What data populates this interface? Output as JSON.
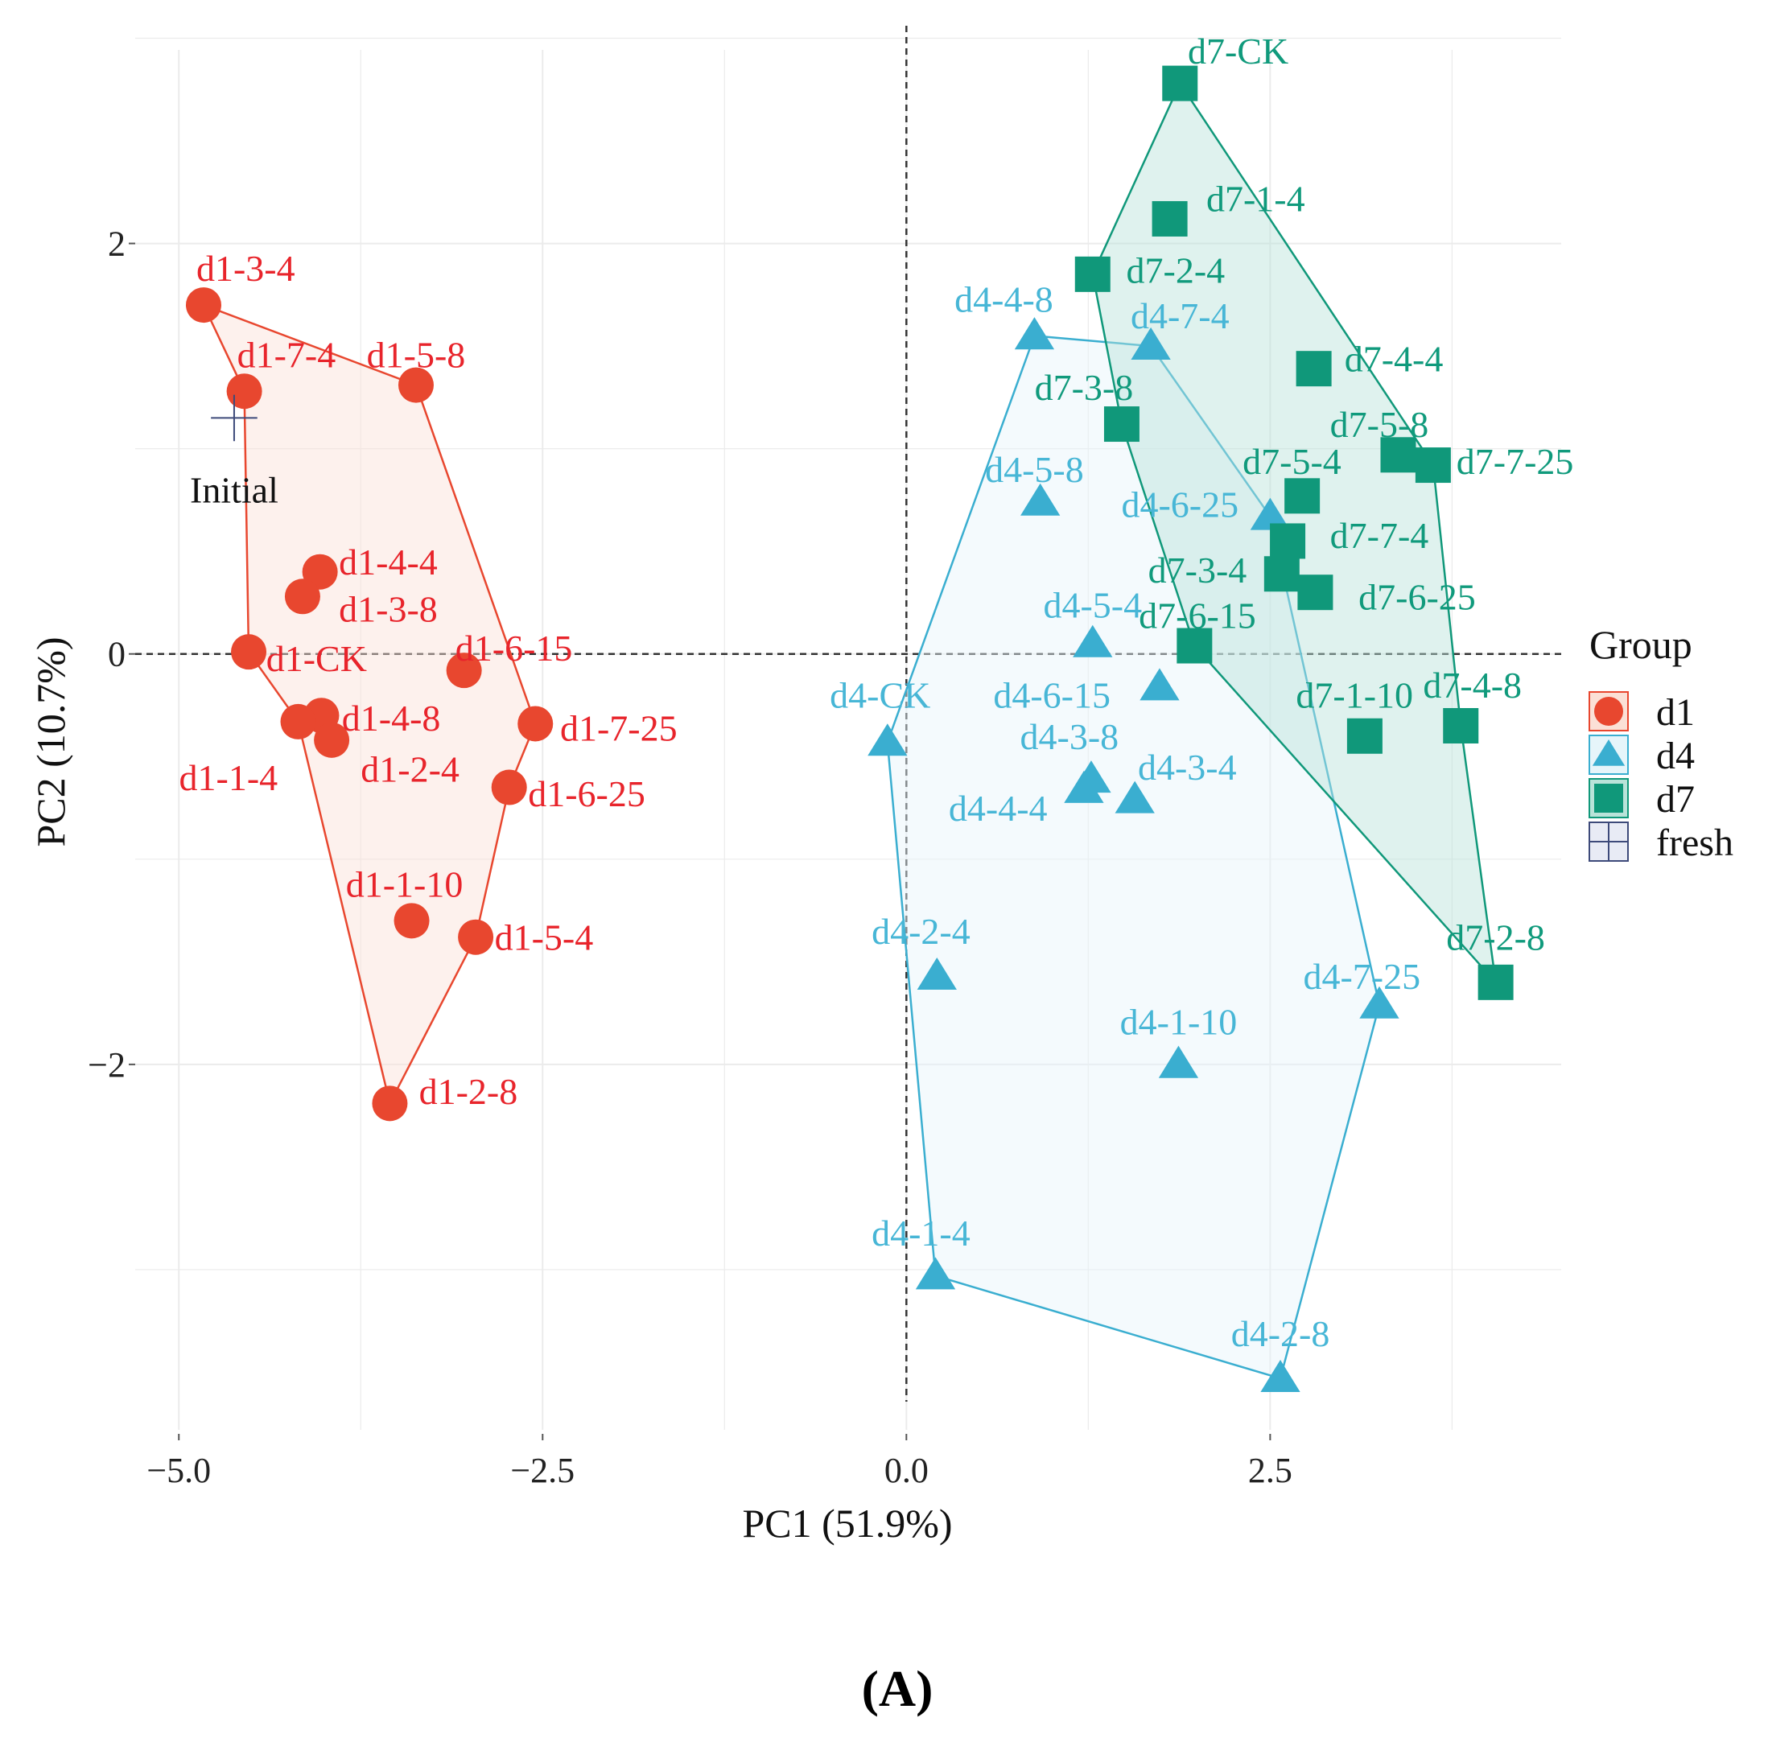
{
  "chart_data": {
    "type": "scatter",
    "xlabel": "PC1 (51.9%)",
    "ylabel": "PC2 (10.7%)",
    "xlim": [
      -5.3,
      4.5
    ],
    "ylim": [
      -3.8,
      3.1
    ],
    "xticks": [
      {
        "value": -5.0,
        "label": "−5.0"
      },
      {
        "value": -2.5,
        "label": "−2.5"
      },
      {
        "value": 0.0,
        "label": "0.0"
      },
      {
        "value": 2.5,
        "label": "2.5"
      }
    ],
    "yticks": [
      {
        "value": 2,
        "label": "2"
      },
      {
        "value": 0,
        "label": "0"
      },
      {
        "value": -2,
        "label": "−2"
      }
    ],
    "grid": true,
    "reference_lines": {
      "x": 0,
      "y": 0
    },
    "legend": {
      "title": "Group",
      "position": "right"
    },
    "caption": "(A)",
    "series": [
      {
        "name": "d1",
        "shape": "circle",
        "color": "#e8472f",
        "fill": "#fbe0d6",
        "label_color": "#e8242b",
        "hull": [
          "d1-3-4",
          "d1-5-8",
          "d1-7-25",
          "d1-6-25",
          "d1-5-4",
          "d1-2-8",
          "d1-1-4",
          "d1-CK",
          "d1-7-4"
        ],
        "points": [
          {
            "label": "d1-3-4",
            "x": -4.83,
            "y": 1.7,
            "lx": -4.88,
            "ly": 1.88,
            "anchor": "start"
          },
          {
            "label": "d1-7-4",
            "x": -4.55,
            "y": 1.28,
            "lx": -4.6,
            "ly": 1.46,
            "anchor": "start"
          },
          {
            "label": "d1-5-8",
            "x": -3.37,
            "y": 1.31,
            "lx": -3.37,
            "ly": 1.46,
            "anchor": "middle"
          },
          {
            "label": "d1-4-4",
            "x": -4.03,
            "y": 0.4,
            "lx": -3.9,
            "ly": 0.45,
            "anchor": "start"
          },
          {
            "label": "d1-3-8",
            "x": -4.15,
            "y": 0.28,
            "lx": -3.9,
            "ly": 0.22,
            "anchor": "start"
          },
          {
            "label": "d1-CK",
            "x": -4.52,
            "y": 0.01,
            "lx": -4.4,
            "ly": -0.02,
            "anchor": "start"
          },
          {
            "label": "d1-6-15",
            "x": -3.04,
            "y": -0.08,
            "lx": -3.1,
            "ly": 0.03,
            "anchor": "start"
          },
          {
            "label": "d1-7-25",
            "x": -2.55,
            "y": -0.34,
            "lx": -2.38,
            "ly": -0.36,
            "anchor": "start"
          },
          {
            "label": "d1-4-8",
            "x": -4.02,
            "y": -0.3,
            "lx": -3.88,
            "ly": -0.31,
            "anchor": "start"
          },
          {
            "label": "d1-1-4",
            "x": -4.18,
            "y": -0.33,
            "lx": -4.32,
            "ly": -0.6,
            "anchor": "end"
          },
          {
            "label": "d1-2-4",
            "x": -3.95,
            "y": -0.42,
            "lx": -3.75,
            "ly": -0.56,
            "anchor": "start"
          },
          {
            "label": "d1-6-25",
            "x": -2.73,
            "y": -0.65,
            "lx": -2.6,
            "ly": -0.68,
            "anchor": "start"
          },
          {
            "label": "d1-1-10",
            "x": -3.4,
            "y": -1.3,
            "lx": -3.45,
            "ly": -1.12,
            "anchor": "middle"
          },
          {
            "label": "d1-5-4",
            "x": -2.96,
            "y": -1.38,
            "lx": -2.83,
            "ly": -1.38,
            "anchor": "start"
          },
          {
            "label": "d1-2-8",
            "x": -3.55,
            "y": -2.19,
            "lx": -3.35,
            "ly": -2.13,
            "anchor": "start"
          }
        ]
      },
      {
        "name": "d4",
        "shape": "triangle",
        "color": "#3aaed0",
        "fill": "#e6f5fa",
        "label_color": "#47b6d6",
        "hull": [
          "d4-4-8",
          "d4-7-4",
          "d4-6-25",
          "d4-7-25",
          "d4-2-8",
          "d4-1-4",
          "d4-CK"
        ],
        "points": [
          {
            "label": "d4-4-8",
            "x": 0.88,
            "y": 1.55,
            "lx": 0.67,
            "ly": 1.73,
            "anchor": "middle"
          },
          {
            "label": "d4-7-4",
            "x": 1.68,
            "y": 1.5,
            "lx": 1.88,
            "ly": 1.65,
            "anchor": "middle"
          },
          {
            "label": "d4-5-8",
            "x": 0.92,
            "y": 0.74,
            "lx": 0.88,
            "ly": 0.9,
            "anchor": "middle"
          },
          {
            "label": "d4-6-25",
            "x": 2.5,
            "y": 0.67,
            "lx": 1.88,
            "ly": 0.73,
            "anchor": "middle"
          },
          {
            "label": "d4-5-4",
            "x": 1.28,
            "y": 0.05,
            "lx": 1.28,
            "ly": 0.24,
            "anchor": "middle"
          },
          {
            "label": "d4-CK",
            "x": -0.13,
            "y": -0.43,
            "lx": -0.18,
            "ly": -0.2,
            "anchor": "middle"
          },
          {
            "label": "d4-6-15",
            "x": 1.74,
            "y": -0.16,
            "lx": 1.0,
            "ly": -0.2,
            "anchor": "middle"
          },
          {
            "label": "d4-3-8",
            "x": 1.27,
            "y": -0.61,
            "lx": 1.12,
            "ly": -0.4,
            "anchor": "middle"
          },
          {
            "label": "d4-3-4",
            "x": 1.57,
            "y": -0.71,
            "lx": 1.93,
            "ly": -0.55,
            "anchor": "middle"
          },
          {
            "label": "d4-4-4",
            "x": 1.22,
            "y": -0.66,
            "lx": 0.63,
            "ly": -0.75,
            "anchor": "middle"
          },
          {
            "label": "d4-2-4",
            "x": 0.21,
            "y": -1.57,
            "lx": 0.1,
            "ly": -1.35,
            "anchor": "middle"
          },
          {
            "label": "d4-7-25",
            "x": 3.25,
            "y": -1.71,
            "lx": 3.13,
            "ly": -1.57,
            "anchor": "middle"
          },
          {
            "label": "d4-1-10",
            "x": 1.87,
            "y": -2.0,
            "lx": 1.87,
            "ly": -1.79,
            "anchor": "middle"
          },
          {
            "label": "d4-1-4",
            "x": 0.2,
            "y": -3.03,
            "lx": 0.1,
            "ly": -2.82,
            "anchor": "middle"
          },
          {
            "label": "d4-2-8",
            "x": 2.57,
            "y": -3.53,
            "lx": 2.57,
            "ly": -3.31,
            "anchor": "middle"
          }
        ]
      },
      {
        "name": "d7",
        "shape": "square",
        "color": "#10987a",
        "fill": "#b9e3d9",
        "label_color": "#109a7c",
        "hull": [
          "d7-CK",
          "d7-7-25",
          "d7-4-8",
          "d7-2-8",
          "d7-6-15",
          "d7-3-8",
          "d7-2-4"
        ],
        "points": [
          {
            "label": "d7-CK",
            "x": 1.88,
            "y": 2.78,
            "lx": 2.28,
            "ly": 2.94,
            "anchor": "middle"
          },
          {
            "label": "d7-1-4",
            "x": 1.81,
            "y": 2.12,
            "lx": 2.4,
            "ly": 2.22,
            "anchor": "middle"
          },
          {
            "label": "d7-2-4",
            "x": 1.28,
            "y": 1.85,
            "lx": 1.85,
            "ly": 1.87,
            "anchor": "middle"
          },
          {
            "label": "d7-4-4",
            "x": 2.8,
            "y": 1.39,
            "lx": 3.35,
            "ly": 1.44,
            "anchor": "middle"
          },
          {
            "label": "d7-3-8",
            "x": 1.48,
            "y": 1.12,
            "lx": 1.22,
            "ly": 1.3,
            "anchor": "middle"
          },
          {
            "label": "d7-5-8",
            "x": 3.38,
            "y": 0.97,
            "lx": 3.25,
            "ly": 1.12,
            "anchor": "middle"
          },
          {
            "label": "d7-7-25",
            "x": 3.62,
            "y": 0.92,
            "lx": 3.78,
            "ly": 0.94,
            "anchor": "start"
          },
          {
            "label": "d7-5-4",
            "x": 2.72,
            "y": 0.77,
            "lx": 2.65,
            "ly": 0.94,
            "anchor": "middle"
          },
          {
            "label": "d7-7-4",
            "x": 2.62,
            "y": 0.55,
            "lx": 3.25,
            "ly": 0.58,
            "anchor": "middle"
          },
          {
            "label": "d7-3-4",
            "x": 2.58,
            "y": 0.39,
            "lx": 2.0,
            "ly": 0.41,
            "anchor": "middle"
          },
          {
            "label": "d7-6-25",
            "x": 2.81,
            "y": 0.3,
            "lx": 3.51,
            "ly": 0.28,
            "anchor": "middle"
          },
          {
            "label": "d7-6-15",
            "x": 1.98,
            "y": 0.04,
            "lx": 2.0,
            "ly": 0.19,
            "anchor": "middle"
          },
          {
            "label": "d7-1-10",
            "x": 3.15,
            "y": -0.4,
            "lx": 3.08,
            "ly": -0.2,
            "anchor": "middle"
          },
          {
            "label": "d7-4-8",
            "x": 3.81,
            "y": -0.35,
            "lx": 3.89,
            "ly": -0.15,
            "anchor": "middle"
          },
          {
            "label": "d7-2-8",
            "x": 4.05,
            "y": -1.6,
            "lx": 4.05,
            "ly": -1.38,
            "anchor": "middle"
          }
        ]
      },
      {
        "name": "fresh",
        "shape": "cross",
        "color": "#3d4a7a",
        "fill": "#e8ebf5",
        "label_color": "#111111",
        "hull": [],
        "points": [
          {
            "label": "Initial",
            "x": -4.62,
            "y": 1.15,
            "lx": -4.62,
            "ly": 0.8,
            "anchor": "middle"
          }
        ]
      }
    ]
  }
}
